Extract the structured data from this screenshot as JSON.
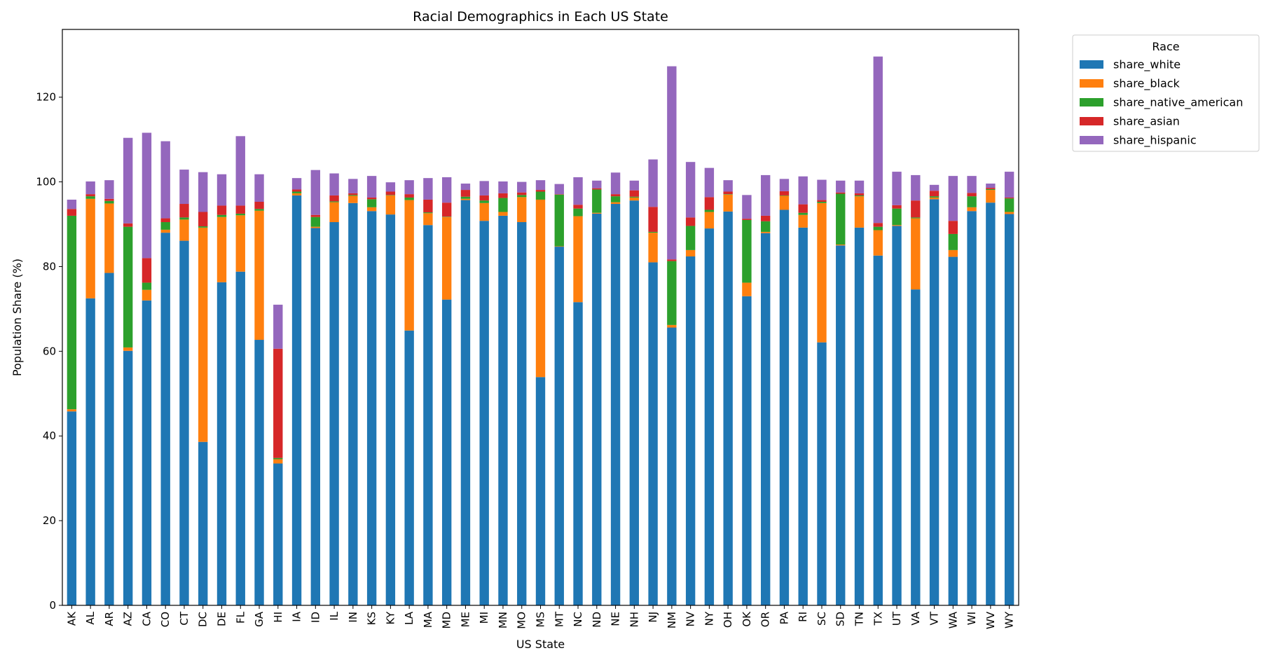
{
  "chart_data": {
    "type": "bar",
    "stacked": true,
    "title": "Racial Demographics in Each US State",
    "xlabel": "US State",
    "ylabel": "Population Share (%)",
    "ylim": [
      0,
      136
    ],
    "yticks": [
      0,
      20,
      40,
      60,
      80,
      100,
      120
    ],
    "grid": false,
    "legend": {
      "title": "Race",
      "placement": "outside-top-right"
    },
    "categories": [
      "AK",
      "AL",
      "AR",
      "AZ",
      "CA",
      "CO",
      "CT",
      "DC",
      "DE",
      "FL",
      "GA",
      "HI",
      "IA",
      "ID",
      "IL",
      "IN",
      "KS",
      "KY",
      "LA",
      "MA",
      "MD",
      "ME",
      "MI",
      "MN",
      "MO",
      "MS",
      "MT",
      "NC",
      "ND",
      "NE",
      "NH",
      "NJ",
      "NM",
      "NV",
      "NY",
      "OH",
      "OK",
      "OR",
      "PA",
      "RI",
      "SC",
      "SD",
      "TN",
      "TX",
      "UT",
      "VA",
      "VT",
      "WA",
      "WI",
      "WV",
      "WY"
    ],
    "series": [
      {
        "name": "share_white",
        "color": "#1f77b4",
        "values": [
          45.8,
          72.5,
          78.5,
          60.1,
          72.0,
          88.0,
          86.1,
          38.6,
          76.3,
          78.8,
          62.7,
          33.5,
          96.8,
          89.1,
          90.5,
          95.0,
          93.1,
          92.3,
          64.9,
          89.8,
          72.2,
          95.7,
          90.8,
          92.0,
          90.5,
          53.9,
          84.7,
          71.6,
          92.5,
          94.8,
          95.6,
          81.0,
          65.6,
          82.4,
          89.0,
          93.0,
          73.0,
          87.9,
          93.4,
          89.2,
          62.1,
          85.0,
          89.2,
          82.6,
          89.6,
          74.6,
          95.9,
          82.3,
          93.1,
          95.1,
          92.4
        ]
      },
      {
        "name": "share_black",
        "color": "#ff7f0e",
        "values": [
          0.5,
          23.5,
          16.4,
          0.8,
          2.5,
          0.7,
          5.0,
          50.6,
          15.4,
          13.3,
          30.5,
          1.0,
          0.5,
          0.3,
          4.7,
          1.7,
          0.9,
          4.5,
          30.8,
          2.8,
          19.5,
          0.3,
          4.2,
          0.9,
          5.9,
          41.9,
          0.1,
          20.3,
          0.2,
          0.4,
          0.7,
          7.0,
          0.6,
          1.5,
          3.9,
          4.0,
          3.2,
          0.3,
          3.3,
          3.0,
          32.9,
          0.2,
          7.4,
          6.0,
          0.2,
          16.8,
          0.4,
          1.6,
          0.9,
          3.0,
          0.5
        ]
      },
      {
        "name": "share_native_american",
        "color": "#2ca02c",
        "values": [
          45.7,
          0.6,
          0.6,
          28.5,
          1.7,
          1.8,
          0.5,
          0.3,
          0.5,
          0.4,
          0.4,
          0.3,
          0.4,
          2.3,
          0.2,
          0.2,
          1.9,
          0.1,
          0.6,
          0.2,
          0.1,
          0.5,
          0.6,
          3.3,
          0.5,
          1.9,
          12.2,
          1.8,
          5.5,
          1.4,
          0.2,
          0.2,
          15.1,
          5.7,
          0.5,
          0.1,
          14.8,
          2.5,
          0.1,
          0.5,
          0.3,
          12.0,
          0.2,
          0.8,
          3.9,
          0.2,
          0.3,
          3.8,
          2.6,
          0.2,
          3.2
        ]
      },
      {
        "name": "share_asian",
        "color": "#d62728",
        "values": [
          1.6,
          0.5,
          0.5,
          0.8,
          5.8,
          0.9,
          3.2,
          3.4,
          2.2,
          1.9,
          1.7,
          25.8,
          0.5,
          0.5,
          1.4,
          0.4,
          0.4,
          0.8,
          0.8,
          3.0,
          3.3,
          1.6,
          1.2,
          1.1,
          0.6,
          0.4,
          0.1,
          0.9,
          0.3,
          0.5,
          1.5,
          5.9,
          0.4,
          2.0,
          3.0,
          0.6,
          0.3,
          1.3,
          1.0,
          2.0,
          0.4,
          0.3,
          0.5,
          0.9,
          0.8,
          4.0,
          1.3,
          3.1,
          0.8,
          0.3,
          0.2
        ]
      },
      {
        "name": "share_hispanic",
        "color": "#9467bd",
        "values": [
          2.2,
          3.0,
          4.4,
          20.2,
          29.6,
          18.2,
          8.1,
          9.4,
          7.4,
          16.4,
          6.5,
          10.4,
          2.7,
          10.6,
          5.2,
          3.4,
          5.1,
          2.2,
          3.3,
          5.1,
          6.0,
          1.5,
          3.4,
          2.8,
          2.5,
          2.3,
          2.4,
          6.5,
          1.8,
          5.1,
          2.3,
          11.2,
          45.6,
          13.1,
          6.9,
          2.7,
          5.6,
          9.6,
          2.9,
          6.6,
          4.8,
          2.8,
          3.0,
          39.3,
          7.9,
          6.0,
          1.4,
          10.6,
          4.0,
          1.0,
          6.1
        ]
      }
    ]
  }
}
